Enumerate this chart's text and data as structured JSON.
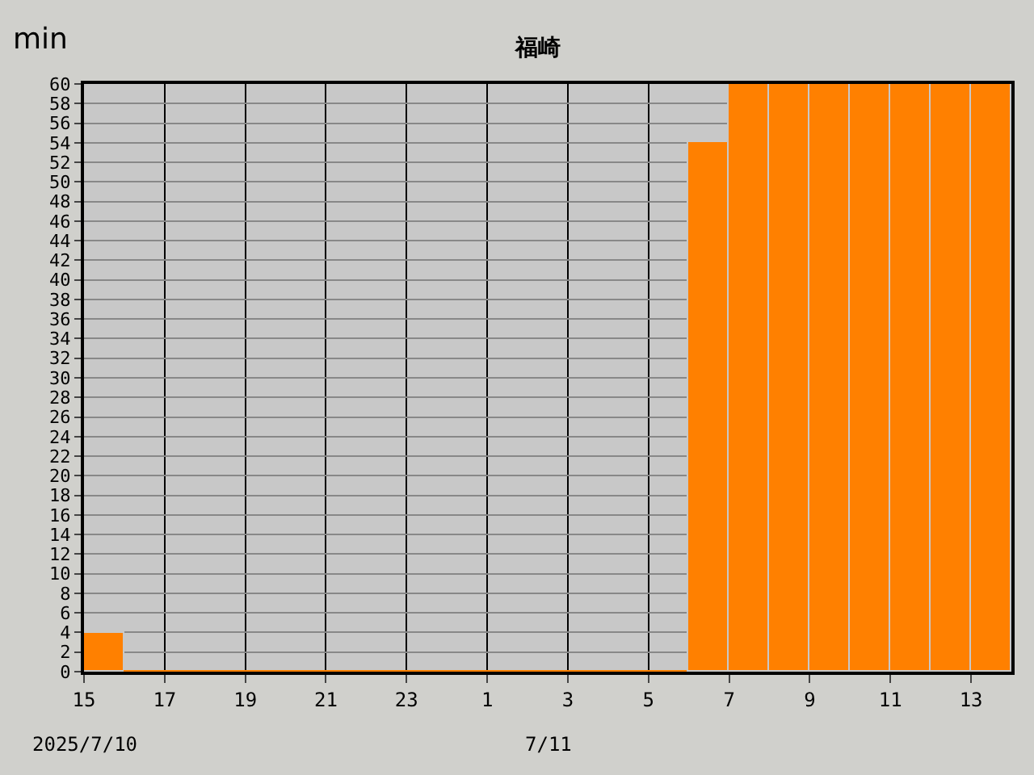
{
  "chart_data": {
    "type": "bar",
    "title": "福崎",
    "ylabel": "min",
    "x": [
      "2025-07-10T15:30",
      "2025-07-10T16:30",
      "2025-07-10T17:30",
      "2025-07-10T18:30",
      "2025-07-10T19:30",
      "2025-07-10T20:30",
      "2025-07-10T21:30",
      "2025-07-10T22:30",
      "2025-07-10T23:30",
      "2025-07-11T00:30",
      "2025-07-11T01:30",
      "2025-07-11T02:30",
      "2025-07-11T03:30",
      "2025-07-11T04:30",
      "2025-07-11T05:30",
      "2025-07-11T06:30",
      "2025-07-11T07:30",
      "2025-07-11T08:30",
      "2025-07-11T09:30",
      "2025-07-11T10:30",
      "2025-07-11T11:30",
      "2025-07-11T12:30",
      "2025-07-11T13:30"
    ],
    "values": [
      4,
      0,
      0,
      0,
      0,
      0,
      0,
      0,
      0,
      0,
      0,
      0,
      0,
      0,
      0,
      54,
      60,
      60,
      60,
      60,
      60,
      60,
      60
    ],
    "color": "#ff8000",
    "xlim": [
      "2025-07-10T15:00",
      "2025-07-11T14:00"
    ],
    "xticks": [
      {
        "value": "2025-07-10T15:00",
        "label": "15"
      },
      {
        "value": "2025-07-10T17:00",
        "label": "17"
      },
      {
        "value": "2025-07-10T19:00",
        "label": "19"
      },
      {
        "value": "2025-07-10T21:00",
        "label": "21"
      },
      {
        "value": "2025-07-10T23:00",
        "label": "23"
      },
      {
        "value": "2025-07-11T01:00",
        "label": "1"
      },
      {
        "value": "2025-07-11T03:00",
        "label": "3"
      },
      {
        "value": "2025-07-11T05:00",
        "label": "5"
      },
      {
        "value": "2025-07-11T07:00",
        "label": "7"
      },
      {
        "value": "2025-07-11T09:00",
        "label": "9"
      },
      {
        "value": "2025-07-11T11:00",
        "label": "11"
      },
      {
        "value": "2025-07-11T13:00",
        "label": "13"
      }
    ],
    "ylim": [
      0,
      60
    ],
    "yticks": [
      0,
      2,
      4,
      6,
      8,
      10,
      12,
      14,
      16,
      18,
      20,
      22,
      24,
      26,
      28,
      30,
      32,
      34,
      36,
      38,
      40,
      42,
      44,
      46,
      48,
      50,
      52,
      54,
      56,
      58,
      60
    ],
    "grid": true,
    "annotations": [
      "2025/7/10",
      "7/11"
    ]
  }
}
